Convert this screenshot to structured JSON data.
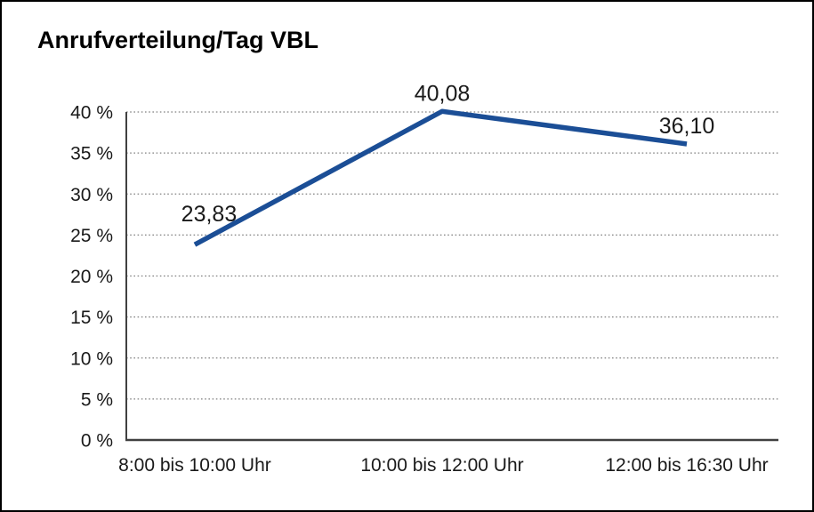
{
  "title": "Anrufverteilung/Tag VBL",
  "chart_data": {
    "type": "line",
    "title": "Anrufverteilung/Tag VBL",
    "categories": [
      "8:00 bis 10:00 Uhr",
      "10:00 bis 12:00 Uhr",
      "12:00 bis 16:30 Uhr"
    ],
    "values": [
      23.83,
      40.08,
      36.1
    ],
    "data_labels": [
      "23,83",
      "40,08",
      "36,10"
    ],
    "xlabel": "",
    "ylabel": "",
    "ylim": [
      0,
      40
    ],
    "ytick_step": 5,
    "ytick_labels": [
      "0 %",
      "5 %",
      "10 %",
      "15 %",
      "20 %",
      "25 %",
      "30 %",
      "35 %",
      "40 %"
    ],
    "grid": "horizontal-dotted",
    "legend": "none",
    "colors": {
      "line": "#1b4e96",
      "grid": "#808080",
      "axis": "#404040",
      "text": "#1a1a1a",
      "background": "#ffffff",
      "border": "#000000"
    }
  }
}
